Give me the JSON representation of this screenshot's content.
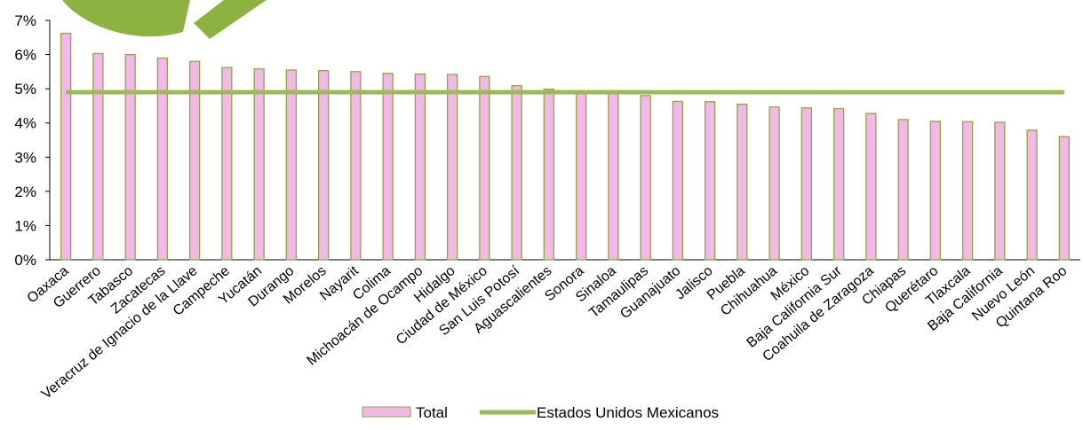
{
  "chart_data": {
    "type": "bar",
    "categories": [
      "Oaxaca",
      "Guerrero",
      "Tabasco",
      "Zacatecas",
      "Veracruz de Ignacio de la Llave",
      "Campeche",
      "Yucatán",
      "Durango",
      "Morelos",
      "Nayarit",
      "Colima",
      "Michoacán de Ocampo",
      "Hidalgo",
      "Ciudad de México",
      "San Luis Potosí",
      "Aguascalientes",
      "Sonora",
      "Sinaloa",
      "Tamaulipas",
      "Guanajuato",
      "Jalisco",
      "Puebla",
      "Chihuahua",
      "México",
      "Baja California Sur",
      "Coahuila de Zaragoza",
      "Chiapas",
      "Querétaro",
      "Tlaxcala",
      "Baja California",
      "Nuevo León",
      "Quintana Roo"
    ],
    "series": [
      {
        "name": "Total",
        "kind": "bar",
        "color": "#f4b8e8",
        "stroke": "#8aa83a",
        "values": [
          6.62,
          6.03,
          6.0,
          5.9,
          5.8,
          5.62,
          5.58,
          5.55,
          5.53,
          5.5,
          5.45,
          5.43,
          5.42,
          5.36,
          5.09,
          4.99,
          4.91,
          4.89,
          4.8,
          4.63,
          4.62,
          4.55,
          4.47,
          4.44,
          4.42,
          4.28,
          4.1,
          4.05,
          4.04,
          4.02,
          3.79,
          3.6
        ]
      },
      {
        "name": "Estados Unidos Mexicanos",
        "kind": "line",
        "color": "#9bbb59",
        "value": 4.9
      }
    ],
    "yticks": [
      "0%",
      "1%",
      "2%",
      "3%",
      "4%",
      "5%",
      "6%",
      "7%"
    ],
    "ylim": [
      0,
      7
    ],
    "grid": false,
    "legend_position": "bottom"
  }
}
